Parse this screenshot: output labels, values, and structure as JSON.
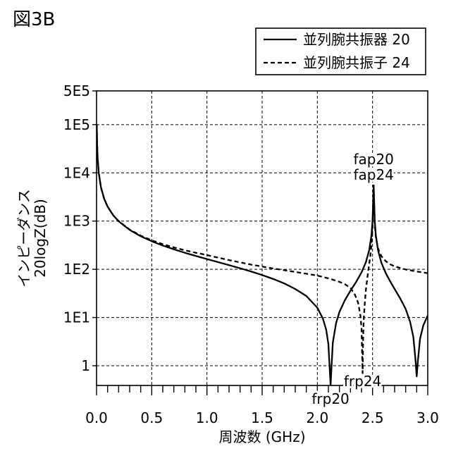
{
  "figure_label": "図3B",
  "chart_data": {
    "type": "line",
    "xlabel": "周波数 (GHz)",
    "ylabel": [
      "インピーダンス",
      "20logZ(dB)"
    ],
    "xlim": [
      0,
      3.0
    ],
    "ylim": [
      0.39,
      500000
    ],
    "yscale": "log",
    "grid": true,
    "legend": "top-right",
    "xticks": {
      "values": [
        0,
        0.5,
        1.0,
        1.5,
        2.0,
        2.5,
        3.0
      ],
      "labels": [
        "0.0",
        "0.5",
        "1.0",
        "1.5",
        "2.0",
        "2.5",
        "3.0"
      ],
      "minor_step": 0.1
    },
    "yticks": {
      "values": [
        500000,
        100000,
        10000,
        1000,
        100,
        10,
        1
      ],
      "labels": [
        "5E5",
        "1E5",
        "1E4",
        "1E3",
        "1E2",
        "1E1",
        "1"
      ]
    },
    "series": [
      {
        "name": "並列腕共振器 20",
        "dashed": false,
        "color": "#000000",
        "points": [
          [
            0.002,
            100000
          ],
          [
            0.005,
            40000
          ],
          [
            0.01,
            20000
          ],
          [
            0.02,
            10000
          ],
          [
            0.04,
            5000
          ],
          [
            0.07,
            2850
          ],
          [
            0.1,
            2000
          ],
          [
            0.15,
            1330
          ],
          [
            0.2,
            990
          ],
          [
            0.3,
            655
          ],
          [
            0.4,
            485
          ],
          [
            0.5,
            381
          ],
          [
            0.6,
            311
          ],
          [
            0.7,
            260
          ],
          [
            0.8,
            220
          ],
          [
            0.9,
            189
          ],
          [
            1.0,
            163
          ],
          [
            1.1,
            141
          ],
          [
            1.2,
            122
          ],
          [
            1.3,
            105
          ],
          [
            1.4,
            90
          ],
          [
            1.5,
            76
          ],
          [
            1.6,
            63
          ],
          [
            1.7,
            51
          ],
          [
            1.8,
            39
          ],
          [
            1.9,
            28
          ],
          [
            2.0,
            16
          ],
          [
            2.05,
            9.5
          ],
          [
            2.08,
            5.6
          ],
          [
            2.1,
            2.8
          ],
          [
            2.12,
            0.4
          ],
          [
            2.14,
            3.0
          ],
          [
            2.17,
            7.7
          ],
          [
            2.2,
            13
          ],
          [
            2.25,
            23
          ],
          [
            2.3,
            36
          ],
          [
            2.35,
            54
          ],
          [
            2.4,
            86
          ],
          [
            2.44,
            141
          ],
          [
            2.47,
            251
          ],
          [
            2.49,
            504
          ],
          [
            2.5,
            1000
          ],
          [
            2.51,
            5500
          ],
          [
            2.52,
            1000
          ],
          [
            2.53,
            500
          ],
          [
            2.55,
            247
          ],
          [
            2.58,
            137
          ],
          [
            2.62,
            83
          ],
          [
            2.66,
            56
          ],
          [
            2.7,
            39
          ],
          [
            2.75,
            25
          ],
          [
            2.8,
            15
          ],
          [
            2.84,
            8.2
          ],
          [
            2.87,
            3.9
          ],
          [
            2.89,
            1.25
          ],
          [
            2.9,
            0.6
          ],
          [
            2.91,
            1.2
          ],
          [
            2.93,
            3.6
          ],
          [
            2.96,
            6.9
          ],
          [
            3.0,
            11
          ]
        ]
      },
      {
        "name": "並列腕共振子 24",
        "dashed": true,
        "color": "#000000",
        "points": [
          [
            0.002,
            100000
          ],
          [
            0.005,
            40000
          ],
          [
            0.01,
            20000
          ],
          [
            0.02,
            10000
          ],
          [
            0.04,
            5000
          ],
          [
            0.07,
            2850
          ],
          [
            0.1,
            2000
          ],
          [
            0.15,
            1330
          ],
          [
            0.2,
            1000
          ],
          [
            0.3,
            666
          ],
          [
            0.4,
            499
          ],
          [
            0.5,
            398
          ],
          [
            0.6,
            332
          ],
          [
            0.7,
            284
          ],
          [
            0.8,
            248
          ],
          [
            0.9,
            220
          ],
          [
            1.0,
            197
          ],
          [
            1.2,
            155
          ],
          [
            1.4,
            125
          ],
          [
            1.6,
            104
          ],
          [
            1.8,
            88
          ],
          [
            1.9,
            81
          ],
          [
            2.0,
            74
          ],
          [
            2.1,
            65
          ],
          [
            2.2,
            55
          ],
          [
            2.25,
            49
          ],
          [
            2.3,
            41
          ],
          [
            2.34,
            30
          ],
          [
            2.37,
            20
          ],
          [
            2.39,
            11
          ],
          [
            2.4,
            6
          ],
          [
            2.41,
            0.7
          ],
          [
            2.415,
            4
          ],
          [
            2.42,
            9
          ],
          [
            2.43,
            20
          ],
          [
            2.44,
            38
          ],
          [
            2.46,
            90
          ],
          [
            2.48,
            190
          ],
          [
            2.49,
            320
          ],
          [
            2.5,
            700
          ],
          [
            2.51,
            5500
          ],
          [
            2.52,
            838
          ],
          [
            2.53,
            459
          ],
          [
            2.55,
            269
          ],
          [
            2.58,
            187
          ],
          [
            2.62,
            147
          ],
          [
            2.66,
            127
          ],
          [
            2.7,
            115
          ],
          [
            2.8,
            99
          ],
          [
            2.9,
            90
          ],
          [
            3.0,
            83
          ]
        ]
      }
    ],
    "annotations": [
      {
        "text": "fap20",
        "x": 2.51
      },
      {
        "text": "fap24",
        "x": 2.51
      },
      {
        "text": "frp24",
        "x": 2.41
      },
      {
        "text": "frp20",
        "x": 2.12
      }
    ]
  }
}
